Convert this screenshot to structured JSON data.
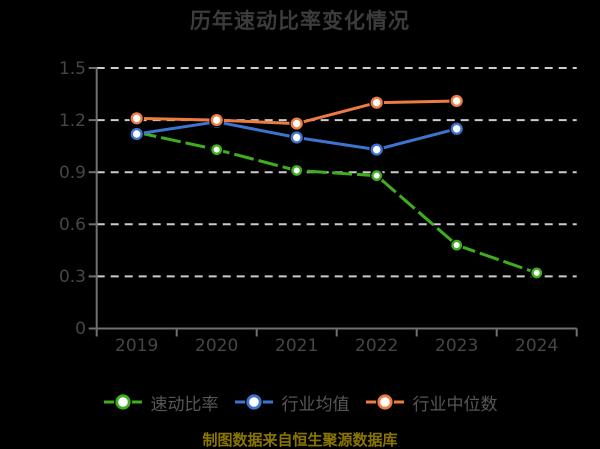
{
  "header": {
    "title": "历年速动比率变化情况"
  },
  "chart_data": {
    "type": "line",
    "title": "历年速动比率变化情况",
    "categories": [
      "2019",
      "2020",
      "2021",
      "2022",
      "2023",
      "2024"
    ],
    "series": [
      {
        "name": "速动比率",
        "color": "#3EAE1E",
        "line_style": "dashed",
        "values": [
          1.13,
          1.03,
          0.91,
          0.88,
          0.48,
          0.32
        ]
      },
      {
        "name": "行业均值",
        "color": "#3E74CE",
        "line_style": "solid",
        "values": [
          1.12,
          1.19,
          1.1,
          1.03,
          1.15,
          null
        ]
      },
      {
        "name": "行业中位数",
        "color": "#EE7B41",
        "line_style": "solid",
        "values": [
          1.21,
          1.2,
          1.18,
          1.3,
          1.31,
          null
        ]
      }
    ],
    "xlabel": "",
    "ylabel": "",
    "ylim": [
      0,
      1.5
    ],
    "yticks": [
      0,
      0.3,
      0.6,
      0.9,
      1.2,
      1.5
    ],
    "ytick_labels": [
      "0",
      "0.3",
      "0.6",
      "0.9",
      "1.2",
      "1.5"
    ],
    "grid": "horizontal dashed",
    "legend_position": "bottom",
    "marker": "white-filled circle with colored ring"
  },
  "footer": {
    "caption": "制图数据来自恒生聚源数据库",
    "caption_color": "#8A7500"
  },
  "colors": {
    "background": "#000000",
    "gridline": "#CCCCCC",
    "axis": "#707070",
    "title_text": "#3C3C3C",
    "tick_label_text": "#464646",
    "legend_text": "#565656"
  }
}
